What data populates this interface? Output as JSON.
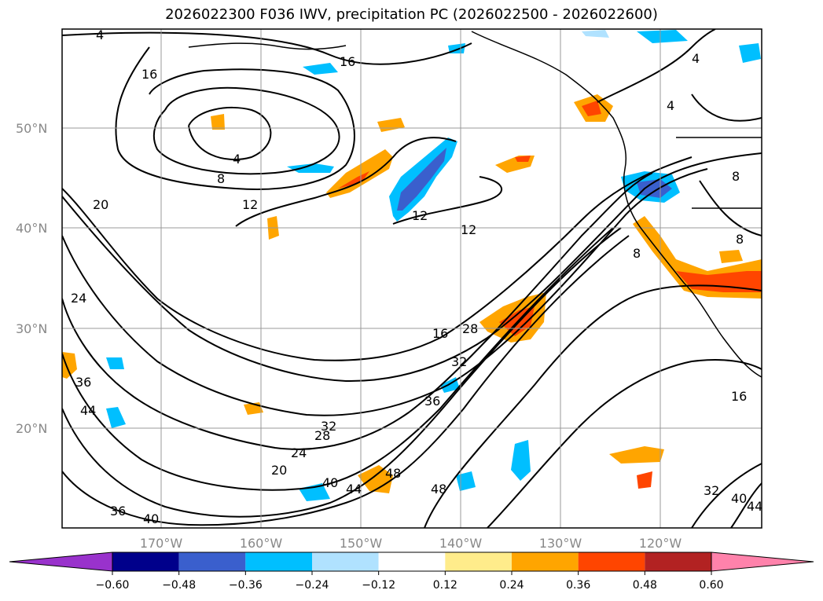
{
  "title": "2026022300 F036 IWV, precipitation PC (2026022500 - 2026022600)",
  "lat_labels": [
    "50°N",
    "40°N",
    "30°N",
    "20°N"
  ],
  "lon_labels": [
    "170°W",
    "160°W",
    "150°W",
    "140°W",
    "130°W",
    "120°W"
  ],
  "colorbar": {
    "ticks": [
      "−0.60",
      "−0.48",
      "−0.36",
      "−0.24",
      "−0.12",
      "0.12",
      "0.24",
      "0.36",
      "0.48",
      "0.60"
    ],
    "colors": [
      "#9932cc",
      "#00008b",
      "#3a5fcd",
      "#00bfff",
      "#b0e2ff",
      "#ffffff",
      "#ffec8b",
      "#ffa500",
      "#ff4500",
      "#b22222",
      "#ff82ab"
    ]
  },
  "contour_labels": [
    "4",
    "8",
    "12",
    "16",
    "20",
    "24",
    "28",
    "32",
    "36",
    "40",
    "44",
    "48",
    "4",
    "8",
    "12",
    "16",
    "20",
    "24",
    "28",
    "32",
    "36",
    "40",
    "44",
    "48",
    "16",
    "12",
    "4",
    "8",
    "40",
    "44",
    "36",
    "32",
    "16",
    "8",
    "4"
  ]
}
